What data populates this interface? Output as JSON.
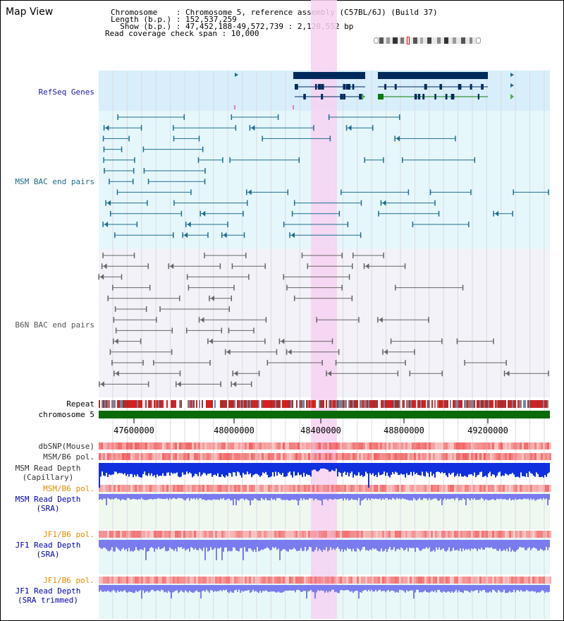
{
  "title": "Map View",
  "header": {
    "line1": "Chromosome    : Chromosome 5, reference assembly (C57BL/6J) (Build 37)",
    "line2": "Length (b.p.) : 152,537,259",
    "line3": "  Show (b.p.) : 47,452,188-49,572,739 : 2,120,552 bp",
    "line4": "Read coverage check span : 10,000"
  },
  "tracks": {
    "refseq": "RefSeq Genes",
    "msm_bac": "MSM BAC end pairs",
    "b6n_bac": "B6N BAC end pairs",
    "repeat": "Repeat",
    "chromosome": "chromosome 5",
    "dbsnp": "dbSNP(Mouse)",
    "msm_b6_pol": "MSM/B6 pol.",
    "msm_depth_cap": "MSM Read Depth\n(Capillary)",
    "msm_b6_pol2": "MSM/B6 pol.",
    "msm_depth_sra": "MSM Read Depth\n(SRA)",
    "jf1_b6_pol": "JF1/B6 pol.",
    "jf1_depth_sra": "JF1 Read Depth\n(SRA)",
    "jf1_b6_pol2": "JF1/B6 pol.",
    "jf1_depth_trim": "JF1 Read Depth\n(SRA trimmed)"
  },
  "axis": {
    "ticks": [
      "47600000",
      "48000000",
      "48400000",
      "48800000",
      "49200000"
    ]
  },
  "colors": {
    "refseq_bg": "#d8eefa",
    "msm_bg": "#e6f7fb",
    "b6n_bg": "#f2f2f8",
    "highlight": "#f7d2f2",
    "gene": "#002a5c",
    "msm_pair": "#1d6e8e",
    "b6n_pair": "#666666",
    "chromosome": "#0a6a0a",
    "snp": "#f08a8a",
    "depth_capillary": "#1030e0",
    "depth_sra": "#7b7bf0"
  }
}
